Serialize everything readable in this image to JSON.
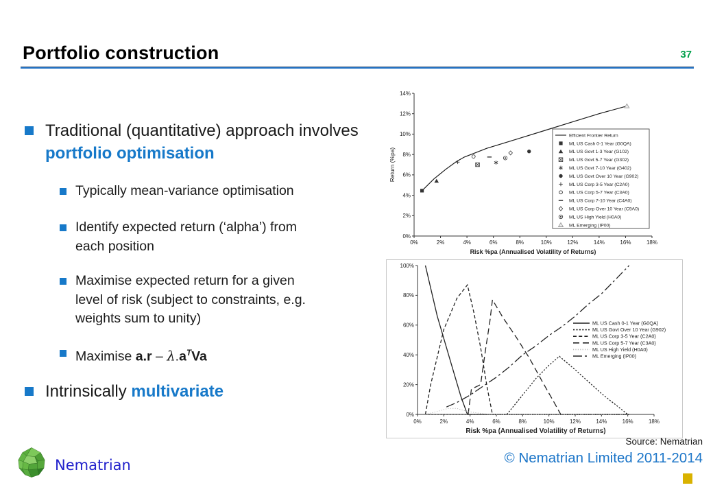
{
  "header": {
    "title": "Portfolio construction",
    "page_number": "37"
  },
  "bullets": {
    "items": [
      {
        "level": 1,
        "segments": [
          {
            "t": "Traditional (quantitative) approach involves ",
            "s": "n"
          },
          {
            "t": "portfolio optimisation",
            "s": "blue"
          }
        ]
      },
      {
        "level": 2,
        "segments": [
          {
            "t": "Typically mean-variance optimisation",
            "s": "n"
          }
        ]
      },
      {
        "level": 2,
        "segments": [
          {
            "t": "Identify expected return (‘alpha’) from each position",
            "s": "n"
          }
        ]
      },
      {
        "level": 2,
        "segments": [
          {
            "t": "Maximise expected return for a given level of risk (subject to constraints, e.g. weights sum to unity)",
            "s": "n"
          }
        ]
      },
      {
        "level": 2,
        "segments": [
          {
            "t": "Maximise  ",
            "s": "n"
          },
          {
            "t": "a.r",
            "s": "b"
          },
          {
            "t": " – ",
            "s": "n"
          },
          {
            "t": "λ",
            "s": "lam"
          },
          {
            "t": ".",
            "s": "n"
          },
          {
            "t": "a",
            "s": "b"
          },
          {
            "t": "T",
            "s": "sup"
          },
          {
            "t": "Va",
            "s": "b"
          }
        ]
      },
      {
        "level": 1,
        "segments": [
          {
            "t": "Intrinsically ",
            "s": "n"
          },
          {
            "t": "multivariate",
            "s": "blue"
          }
        ]
      }
    ]
  },
  "chart_data": [
    {
      "type": "scatter",
      "title": "",
      "xlabel": "Risk %pa (Annualised Volatility of Returns)",
      "ylabel": "Return (%pa)",
      "xlim": [
        0,
        18
      ],
      "xtick_step": 2,
      "ylim": [
        0,
        14
      ],
      "ytick_step": 2,
      "grid": false,
      "legend_position": "right-inside-box",
      "frontier_line": {
        "name": "Efficient Frontier Return",
        "points": [
          [
            0.6,
            4.45
          ],
          [
            1.5,
            5.6
          ],
          [
            2.4,
            6.55
          ],
          [
            3.2,
            7.3
          ],
          [
            3.8,
            7.75
          ],
          [
            4.5,
            8.1
          ],
          [
            5.5,
            8.6
          ],
          [
            6.5,
            9.0
          ],
          [
            8,
            9.6
          ],
          [
            10,
            10.4
          ],
          [
            12,
            11.2
          ],
          [
            14,
            12.0
          ],
          [
            16.1,
            12.75
          ]
        ]
      },
      "scatter": [
        {
          "name": "ML US Cash 0-1 Year (G0QA)",
          "marker": "square-filled",
          "x": 0.6,
          "y": 4.45
        },
        {
          "name": "ML US Govt 1-3 Year (G102)",
          "marker": "triangle-filled",
          "x": 1.7,
          "y": 5.4
        },
        {
          "name": "ML US Govt 5-7 Year (G302)",
          "marker": "square-x",
          "x": 4.8,
          "y": 7.0
        },
        {
          "name": "ML US Govt 7-10 Year (G402)",
          "marker": "star",
          "x": 6.2,
          "y": 7.2
        },
        {
          "name": "ML US Govt Over 10 Year (G902)",
          "marker": "circle-filled",
          "x": 8.7,
          "y": 8.3
        },
        {
          "name": "ML US Corp 3-5 Year (C2A0)",
          "marker": "plus",
          "x": 3.3,
          "y": 7.25
        },
        {
          "name": "ML US Corp 5-7 Year (C3A0)",
          "marker": "circle-open",
          "x": 4.5,
          "y": 7.8
        },
        {
          "name": "ML US Corp 7-10 Year (C4A0)",
          "marker": "dash",
          "x": 5.7,
          "y": 7.75
        },
        {
          "name": "ML US Corp Over 10 Year (C9A0)",
          "marker": "diamond-open",
          "x": 7.3,
          "y": 8.15
        },
        {
          "name": "ML US High Yield (H0A0)",
          "marker": "circle-dot",
          "x": 6.9,
          "y": 7.65
        },
        {
          "name": "ML Emerging (IP00)",
          "marker": "triangle-open",
          "x": 16.1,
          "y": 12.75
        }
      ]
    },
    {
      "type": "line",
      "title": "",
      "xlabel": "Risk %pa (Annualised Volatility of Returns)",
      "ylabel": "",
      "xlim": [
        0,
        18
      ],
      "xtick_step": 2,
      "ylim": [
        0,
        100
      ],
      "ytick_step": 20,
      "grid": false,
      "legend_position": "middle-right",
      "series": [
        {
          "name": "ML US Cash 0-1 Year (G0QA)",
          "dash": "solid",
          "color": "#222222",
          "points": [
            [
              0.6,
              100
            ],
            [
              1.5,
              66
            ],
            [
              2.5,
              36
            ],
            [
              3.3,
              12
            ],
            [
              3.8,
              0
            ],
            [
              16.1,
              0
            ]
          ]
        },
        {
          "name": "ML US Govt Over 10 Year (G902)",
          "dash": "dotted",
          "color": "#222222",
          "points": [
            [
              0.6,
              0
            ],
            [
              6.8,
              0
            ],
            [
              8,
              13
            ],
            [
              9,
              24
            ],
            [
              10,
              33
            ],
            [
              10.8,
              39
            ],
            [
              12,
              30
            ],
            [
              13,
              22
            ],
            [
              14,
              14
            ],
            [
              15,
              7
            ],
            [
              16,
              0
            ]
          ]
        },
        {
          "name": "ML US Corp 3-5 Year (C2A0)",
          "dash": "dashed",
          "color": "#222222",
          "points": [
            [
              0.6,
              0
            ],
            [
              1,
              20
            ],
            [
              2,
              57
            ],
            [
              3,
              78
            ],
            [
              3.8,
              87
            ],
            [
              4.3,
              68
            ],
            [
              4.8,
              45
            ],
            [
              5.3,
              18
            ],
            [
              5.7,
              0
            ],
            [
              16.1,
              0
            ]
          ]
        },
        {
          "name": "ML US Corp 5-7 Year (C3A0)",
          "dash": "longdash",
          "color": "#222222",
          "points": [
            [
              3.85,
              0
            ],
            [
              4.1,
              17
            ],
            [
              4.8,
              20
            ],
            [
              5.2,
              45
            ],
            [
              5.5,
              62
            ],
            [
              5.7,
              77
            ],
            [
              6.5,
              65
            ],
            [
              7.5,
              52
            ],
            [
              8.5,
              38
            ],
            [
              9.5,
              22
            ],
            [
              10.4,
              8
            ],
            [
              10.9,
              0
            ],
            [
              16.1,
              0
            ]
          ]
        },
        {
          "name": "ML US High Yield (H0A0)",
          "dash": "fine-dotted",
          "color": "#b9b9b9",
          "points": [
            [
              0.6,
              0
            ],
            [
              1.5,
              2
            ],
            [
              2.3,
              4
            ],
            [
              3,
              4
            ],
            [
              3.8,
              2
            ],
            [
              4.5,
              1
            ],
            [
              5.5,
              0
            ],
            [
              16.1,
              0
            ]
          ]
        },
        {
          "name": "ML Emerging (IP00)",
          "dash": "dashdot",
          "color": "#222222",
          "points": [
            [
              2.2,
              5
            ],
            [
              3,
              8
            ],
            [
              4,
              13
            ],
            [
              5,
              19
            ],
            [
              6,
              25
            ],
            [
              7,
              32
            ],
            [
              8,
              40
            ],
            [
              9,
              46
            ],
            [
              10,
              53
            ],
            [
              11,
              59
            ],
            [
              12,
              66
            ],
            [
              13,
              74
            ],
            [
              14,
              81
            ],
            [
              15,
              90
            ],
            [
              16.1,
              100
            ]
          ]
        }
      ]
    }
  ],
  "footer": {
    "brand": "Nematrian",
    "source": "Source: Nematrian",
    "copyright": "© Nematrian Limited 2011-2014"
  },
  "colors": {
    "accent_blue": "#1779C9",
    "rule_blue": "#2575C8",
    "page_green": "#00A04A",
    "brand_blue": "#2222CC",
    "copyright_blue": "#1B75C8",
    "gold": "#D9B200"
  }
}
